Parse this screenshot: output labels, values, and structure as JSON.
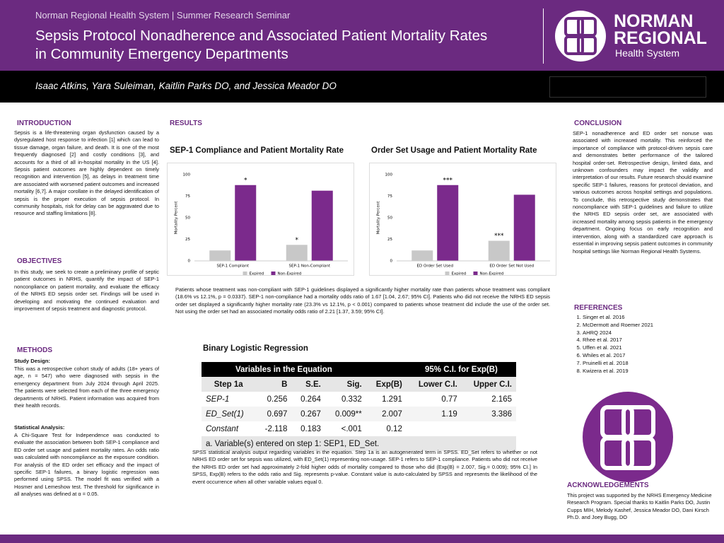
{
  "header": {
    "subtitle": "Norman Regional Health System | Summer Research Seminar",
    "title": "Sepsis Protocol Nonadherence and Associated Patient Mortality Rates in Community Emergency Departments",
    "authors": "Isaac Atkins, Yara Suleiman, Kaitlin Parks DO, and Jessica Meador DO",
    "logo_lines": [
      "NORMAN",
      "REGIONAL",
      "Health System"
    ]
  },
  "introduction": {
    "heading": "INTRODUCTION",
    "text": "Sepsis is a life-threatening organ dysfunction caused by a dysregulated host response to infection [1] which can lead to tissue damage, organ failure, and death. It is one of the most frequently diagnosed [2] and costly conditions [3], and accounts for a third of all in-hospital mortality in the US [4]. Sepsis patient outcomes are highly dependent on timely recognition and intervention [5], as delays in treatment time are associated with worsened patient outcomes and increased mortality [6,7]. A major corollate in the delayed identification of sepsis is the proper execution of sepsis protocol. In community hospitals, risk for delay can be aggravated due to resource and staffing limitations [8]."
  },
  "objectives": {
    "heading": "OBJECTIVES",
    "text": "In this study, we seek to create a preliminary profile of septic patient outcomes in NRHS, quantify the impact of SEP-1 nonconpliance on patient mortality, and evaluate the efficacy of the NRHS ED sepsis order set. Findings will be used in developing and motivating the continued evaluation and improvement of sepsis treatment and diagnostic protocol."
  },
  "methods": {
    "heading": "METHODS",
    "design_heading": "Study Design:",
    "design_text": "This was a retrospective cohort study of adults (18+ years of age, n = 547) who were diagnosed with sepsis in the emergency department from July 2024 through April 2025. The patients were selected from each of the three emergency departments of NRHS. Patient information was acquired from their health records.",
    "analysis_heading": "Statistical Analysis:",
    "analysis_text": "A Chi-Square Test for Independence was conducted to evaluate the association between both SEP-1 compliance and ED order set usage and patient mortality rates. An odds ratio was calculated with noncompliance as the exposure condition. For analysis of the ED order set efficacy and the impact of specific SEP-1 failures, a binary logistic regression was performed using SPSS. The model fit was verified with a Hosmer and Lemeshow test. The threshold for significance in all analyses was defined at α = 0.05."
  },
  "results": {
    "heading": "RESULTS",
    "caption": "Patients whose treatment was non-compliant with SEP-1 guidelines displayed a significantly higher mortality rate than patients whose treatment was compliant (18.6% vs 12.1%, p = 0.0337). SEP-1 non-compliance had a mortality odds ratio of 1.67 [1.04, 2.67; 95% CI]. Patients who did not receive the NRHS ED sepsis order set displayed a significantly higher mortality rate (23.3% vs 12.1%, p < 0.001) compared to patients whose treatment did include the use of the order set. Not using the order set had an associated mortality odds ratio of 2.21 [1.37, 3.59; 95% CI]."
  },
  "chart_data": [
    {
      "type": "bar",
      "title": "SEP-1 Compliance and Patient Mortality Rate",
      "y_label": "Mortality Percent",
      "categories": [
        "SEP-1 Compliant",
        "SEP-1 Non-Compliant"
      ],
      "series": [
        {
          "name": "Expired",
          "color": "#c8c8c8",
          "values": [
            12.1,
            18.6
          ],
          "annotations": [
            null,
            "*"
          ]
        },
        {
          "name": "Non-Expired",
          "color": "#7b2a8c",
          "values": [
            87.9,
            81.4
          ],
          "annotations": [
            "*",
            null
          ]
        }
      ],
      "ylim": [
        0,
        100
      ],
      "yticks": [
        0,
        25,
        50,
        75,
        100
      ],
      "grid": false,
      "legend": "bottom"
    },
    {
      "type": "bar",
      "title": "Order Set Usage and Patient Mortality Rate",
      "y_label": "Mortality Percent",
      "categories": [
        "ED Order Set Used",
        "ED Order Set Not Used"
      ],
      "series": [
        {
          "name": "Expired",
          "color": "#c8c8c8",
          "values": [
            12.1,
            23.3
          ],
          "annotations": [
            null,
            "***"
          ]
        },
        {
          "name": "Non-Expired",
          "color": "#7b2a8c",
          "values": [
            87.9,
            76.7
          ],
          "annotations": [
            "***",
            null
          ]
        }
      ],
      "ylim": [
        0,
        100
      ],
      "yticks": [
        0,
        25,
        50,
        75,
        100
      ],
      "grid": false,
      "legend": "bottom"
    }
  ],
  "table": {
    "title": "Binary Logistic Regression",
    "group_headers": [
      "Variables in the Equation",
      "95% C.I. for Exp(B)"
    ],
    "columns": [
      "Step 1a",
      "B",
      "S.E.",
      "Sig.",
      "Exp(B)",
      "Lower C.I.",
      "Upper C.I."
    ],
    "rows": [
      [
        "SEP-1",
        "0.256",
        "0.264",
        "0.332",
        "1.291",
        "0.77",
        "2.165"
      ],
      [
        "ED_Set(1)",
        "0.697",
        "0.267",
        "0.009**",
        "2.007",
        "1.19",
        "3.386"
      ],
      [
        "Constant",
        "-2.118",
        "0.183",
        "<.001",
        "0.12",
        null,
        null
      ]
    ],
    "footnote": "a.  Variable(s) entered on step 1: SEP1, ED_Set.",
    "caption": "SPSS statistical analysis output regarding variables in the equation. Step 1a is an autogenerated term in SPSS. ED_Set refers to whether or not NRHS ED order set for sepsis was utilized, with ED_Set(1) representing non-usage. SEP-1 refers to SEP-1 compliance. Patients who did not receive the NRHS ED order set had approximately 2-fold higher odds of mortality compared to those who did (Exp(B) = 2.007, Sig.= 0.009); 95% CI.] In SPSS, Exp(B) refers to the odds ratio and Sig. represents p-value. Constant value is auto-calculated by SPSS and represents the likelihood of the event occurrence when all other variable values equal 0."
  },
  "conclusion": {
    "heading": "CONCLUSION",
    "text": "SEP-1 nonadherence and ED order set nonuse was associated with increased mortality. This reinforced the importance of compliance with protocol-driven sepsis care and demonstrates better performance of the tailored hospital order-set. Retrospective design, limited data, and unknown confounders may impact the validity and interpretation of our results. Future research should examine specific SEP-1 failures, reasons for protocol deviation, and various outcomes across hospital settings and populations. To conclude, this retrospective study demonstrates that noncompliance with SEP-1 guidelines and failure to utilize the NRHS ED sepsis order set, are associated with increased mortality among sepsis patients in the emergency department. Ongoing focus on early recognition and intervention, along with a standardized care approach is essential in improving sepsis patient outcomes in community hospital settings like Norman Regional Health Systems."
  },
  "references": {
    "heading": "REFERENCES",
    "items": [
      "Singer et al. 2016",
      "McDermott and Roemer 2021",
      "AHRQ 2024",
      "Rhee et al. 2017",
      "Uffen et al. 2021",
      "Whiles et al. 2017",
      "Pruinelli et al. 2018",
      "Kwizera et al. 2019"
    ]
  },
  "acknowledgements": {
    "heading": "ACKNOWLEDGEMENTS",
    "text": "This project was supported by the NRHS Emergency Medicine Research Program. Special thanks to Kaitlin Parks DO, Justin Cupps MIH, Melody Kashef, Jessica Meador DO, Dani Kirsch Ph.D. and Joey Bugg, DO"
  }
}
